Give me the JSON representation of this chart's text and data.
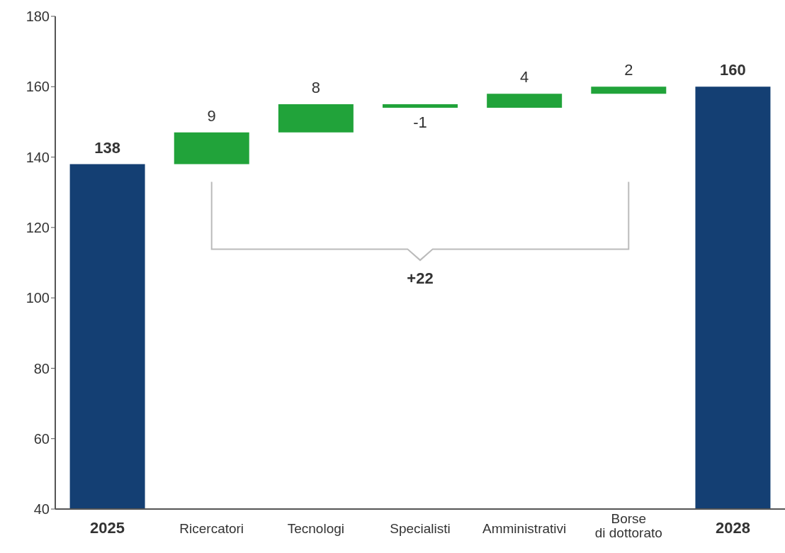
{
  "chart_data": {
    "type": "bar",
    "categories": [
      "2025",
      "Ricercatori",
      "Tecnologi",
      "Specialisti",
      "Amministrativi",
      "Borse\ndi dottorato",
      "2028"
    ],
    "values": [
      138,
      9,
      8,
      -1,
      4,
      2,
      160
    ],
    "base": [
      null,
      138,
      147,
      155,
      154,
      158,
      null
    ],
    "colors": [
      "#143f73",
      "#21a33a",
      "#21a33a",
      "#21a33a",
      "#21a33a",
      "#21a33a",
      "#143f73"
    ],
    "ylim": [
      40,
      180
    ],
    "yticks": [
      40,
      60,
      80,
      100,
      120,
      140,
      160,
      180
    ],
    "data_labels": true,
    "grid": false,
    "legend": false,
    "annotations": [
      "+22"
    ]
  }
}
